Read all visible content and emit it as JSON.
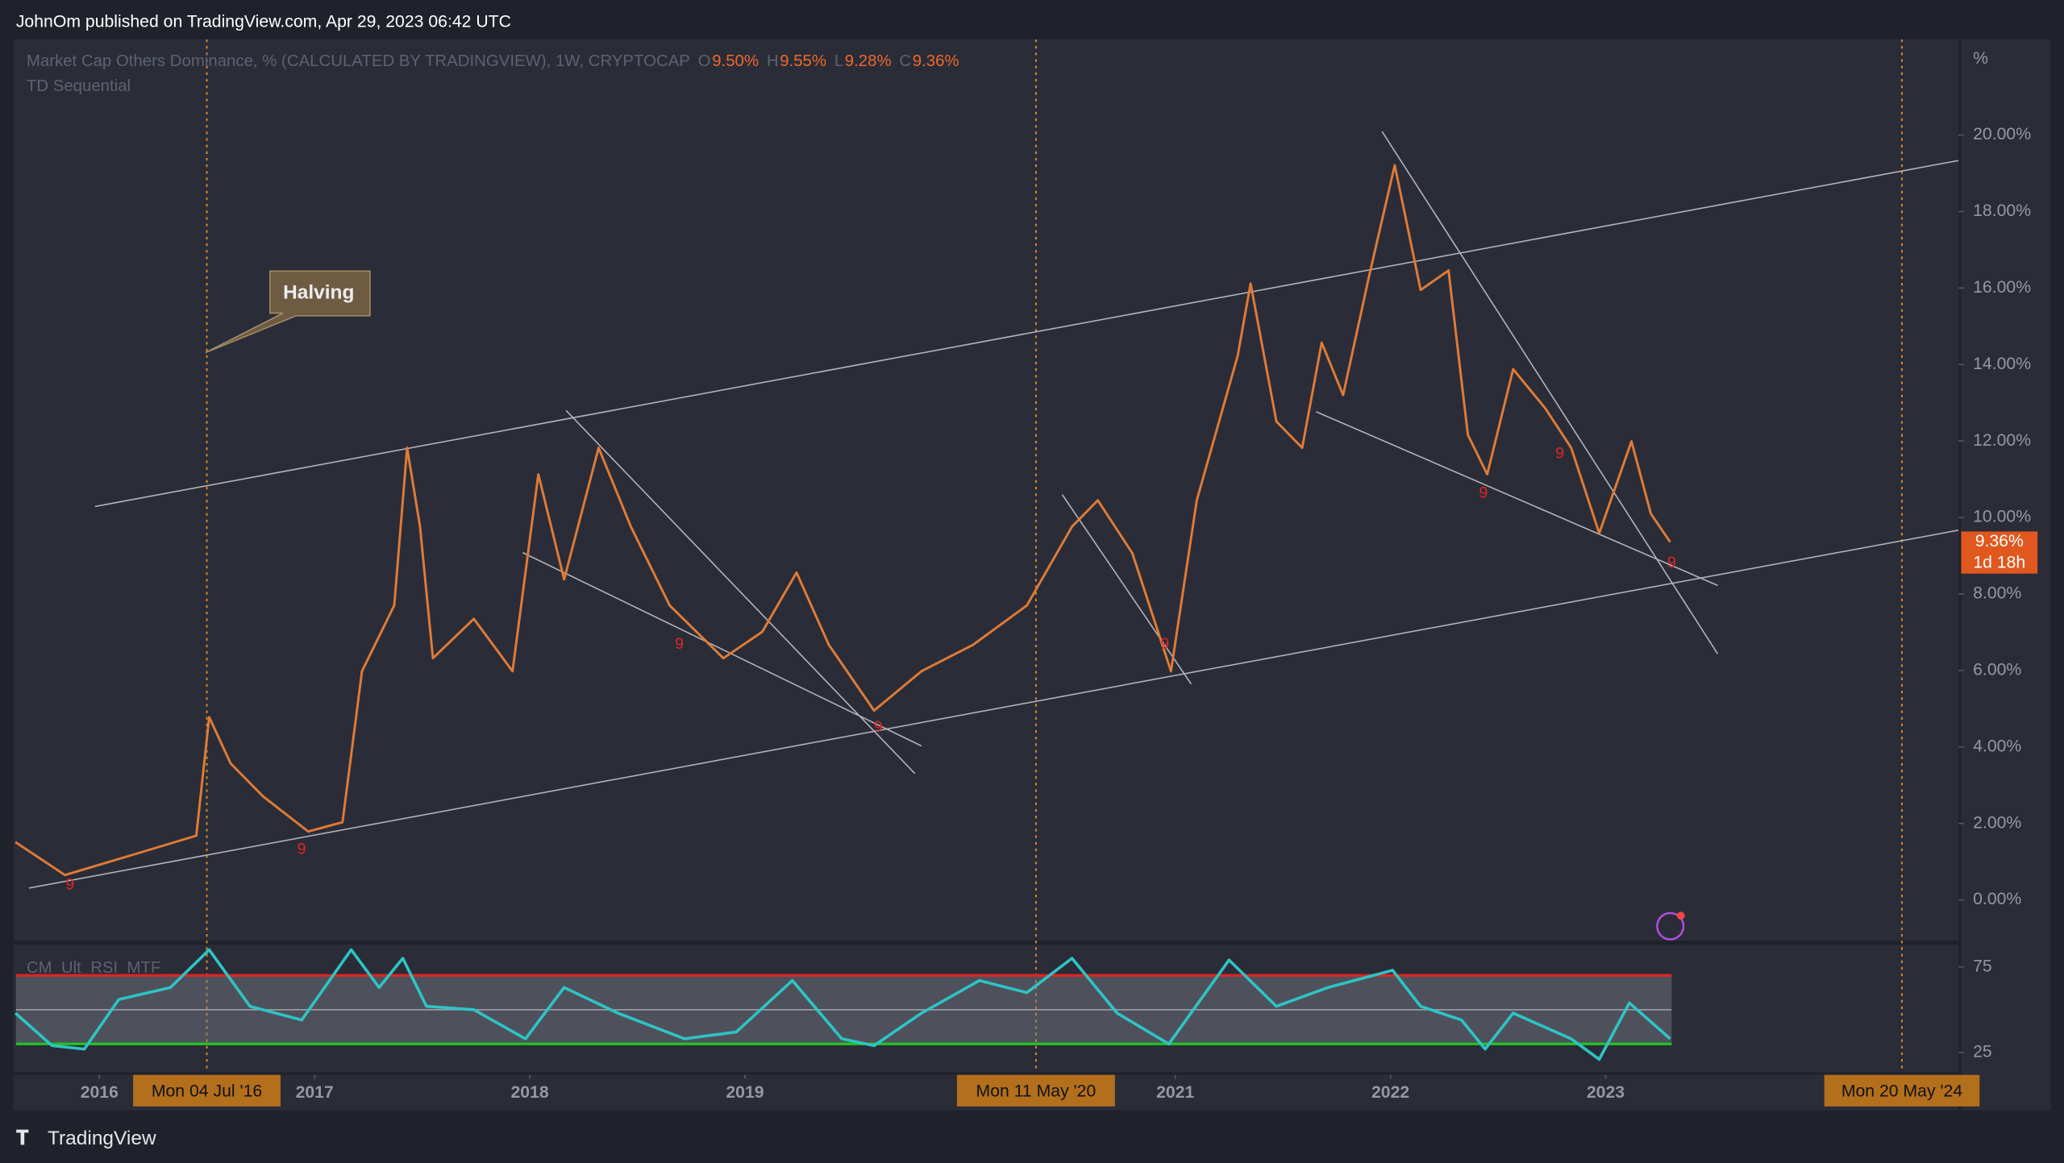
{
  "header": {
    "title": "JohnOm published on TradingView.com, Apr 29, 2023 06:42 UTC"
  },
  "legend": {
    "symbol": "Market Cap Others Dominance, % (CALCULATED BY TRADINGVIEW), 1W, CRYPTOCAP",
    "ohlc": [
      {
        "label": "O",
        "value": "9.50%"
      },
      {
        "label": "H",
        "value": "9.55%"
      },
      {
        "label": "L",
        "value": "9.28%"
      },
      {
        "label": "C",
        "value": "9.36%"
      }
    ],
    "indicator": "TD Sequential"
  },
  "axis_unit": "%",
  "price_badge": {
    "price": "9.36%",
    "countdown": "1d 18h"
  },
  "annotation": "Halving",
  "date_badges": [
    "Mon 04 Jul '16",
    "Mon 11 May '20",
    "Mon 20 May '24"
  ],
  "td_marks": [
    "9",
    "9",
    "9",
    "9",
    "9",
    "9",
    "9",
    "9"
  ],
  "footer": "TradingView",
  "chart_data": [
    {
      "type": "line",
      "color": "#e07b36",
      "x": [
        2015.61,
        2015.84,
        2016.15,
        2016.45,
        2016.51,
        2016.61,
        2016.76,
        2016.97,
        2017.13,
        2017.22,
        2017.37,
        2017.43,
        2017.49,
        2017.55,
        2017.74,
        2017.92,
        2018.04,
        2018.16,
        2018.32,
        2018.47,
        2018.65,
        2018.9,
        2019.08,
        2019.24,
        2019.39,
        2019.6,
        2019.82,
        2020.06,
        2020.31,
        2020.52,
        2020.64,
        2020.8,
        2020.98,
        2021.1,
        2021.29,
        2021.35,
        2021.47,
        2021.59,
        2021.68,
        2021.78,
        2021.9,
        2022.02,
        2022.14,
        2022.27,
        2022.36,
        2022.45,
        2022.57,
        2022.72,
        2022.84,
        2022.97,
        2023.12,
        2023.21,
        2023.3
      ],
      "values": [
        1.51,
        0.65,
        1.17,
        1.68,
        4.78,
        3.57,
        2.71,
        1.79,
        2.03,
        5.98,
        7.7,
        11.82,
        9.76,
        6.32,
        7.35,
        5.98,
        11.13,
        8.38,
        11.82,
        9.76,
        7.7,
        6.32,
        7.01,
        8.56,
        6.67,
        4.95,
        5.98,
        6.67,
        7.7,
        9.76,
        10.45,
        9.07,
        5.98,
        10.45,
        14.23,
        16.12,
        12.51,
        11.82,
        14.57,
        13.2,
        16.29,
        19.21,
        15.95,
        16.46,
        12.16,
        11.13,
        13.88,
        12.85,
        11.82,
        9.59,
        11.99,
        10.1,
        9.36
      ],
      "xlim": [
        2015.6,
        2024.64
      ],
      "ylim": [
        -1.1,
        22.5
      ],
      "xticks": [
        2016,
        2017,
        2018,
        2019,
        2021,
        2022,
        2023
      ],
      "yticks": [
        {
          "value": 0,
          "label": "0.00%"
        },
        {
          "value": 2,
          "label": "2.00%"
        },
        {
          "value": 4,
          "label": "4.00%"
        },
        {
          "value": 6,
          "label": "6.00%"
        },
        {
          "value": 8,
          "label": "8.00%"
        },
        {
          "value": 10,
          "label": "10.00%"
        },
        {
          "value": 12,
          "label": "12.00%"
        },
        {
          "value": 14,
          "label": "14.00%"
        },
        {
          "value": 16,
          "label": "16.00%"
        },
        {
          "value": 18,
          "label": "18.00%"
        },
        {
          "value": 20,
          "label": "20.00%"
        }
      ]
    },
    {
      "type": "line",
      "title": "CM_Ult_RSI_MTF",
      "color": "#2ec4c4",
      "x": [
        2015.61,
        2015.78,
        2015.93,
        2016.09,
        2016.33,
        2016.51,
        2016.7,
        2016.94,
        2017.17,
        2017.3,
        2017.41,
        2017.52,
        2017.74,
        2017.98,
        2018.16,
        2018.41,
        2018.72,
        2018.96,
        2019.22,
        2019.45,
        2019.6,
        2019.82,
        2020.09,
        2020.31,
        2020.52,
        2020.73,
        2020.97,
        2021.25,
        2021.47,
        2021.71,
        2022.01,
        2022.14,
        2022.33,
        2022.44,
        2022.57,
        2022.84,
        2022.97,
        2023.11,
        2023.3
      ],
      "values": [
        48,
        29,
        27,
        56,
        63,
        85,
        52,
        44,
        85,
        63,
        80,
        52,
        50,
        33,
        63,
        48,
        33,
        37,
        67,
        33,
        29,
        48,
        67,
        60,
        80,
        48,
        30,
        79,
        52,
        63,
        73,
        52,
        44,
        27,
        48,
        33,
        21,
        54,
        33
      ],
      "xlim": [
        2015.6,
        2024.64
      ],
      "ylim": [
        13.5,
        88
      ],
      "yticks": [
        25,
        75
      ],
      "bands": [
        30,
        50,
        70
      ]
    }
  ]
}
